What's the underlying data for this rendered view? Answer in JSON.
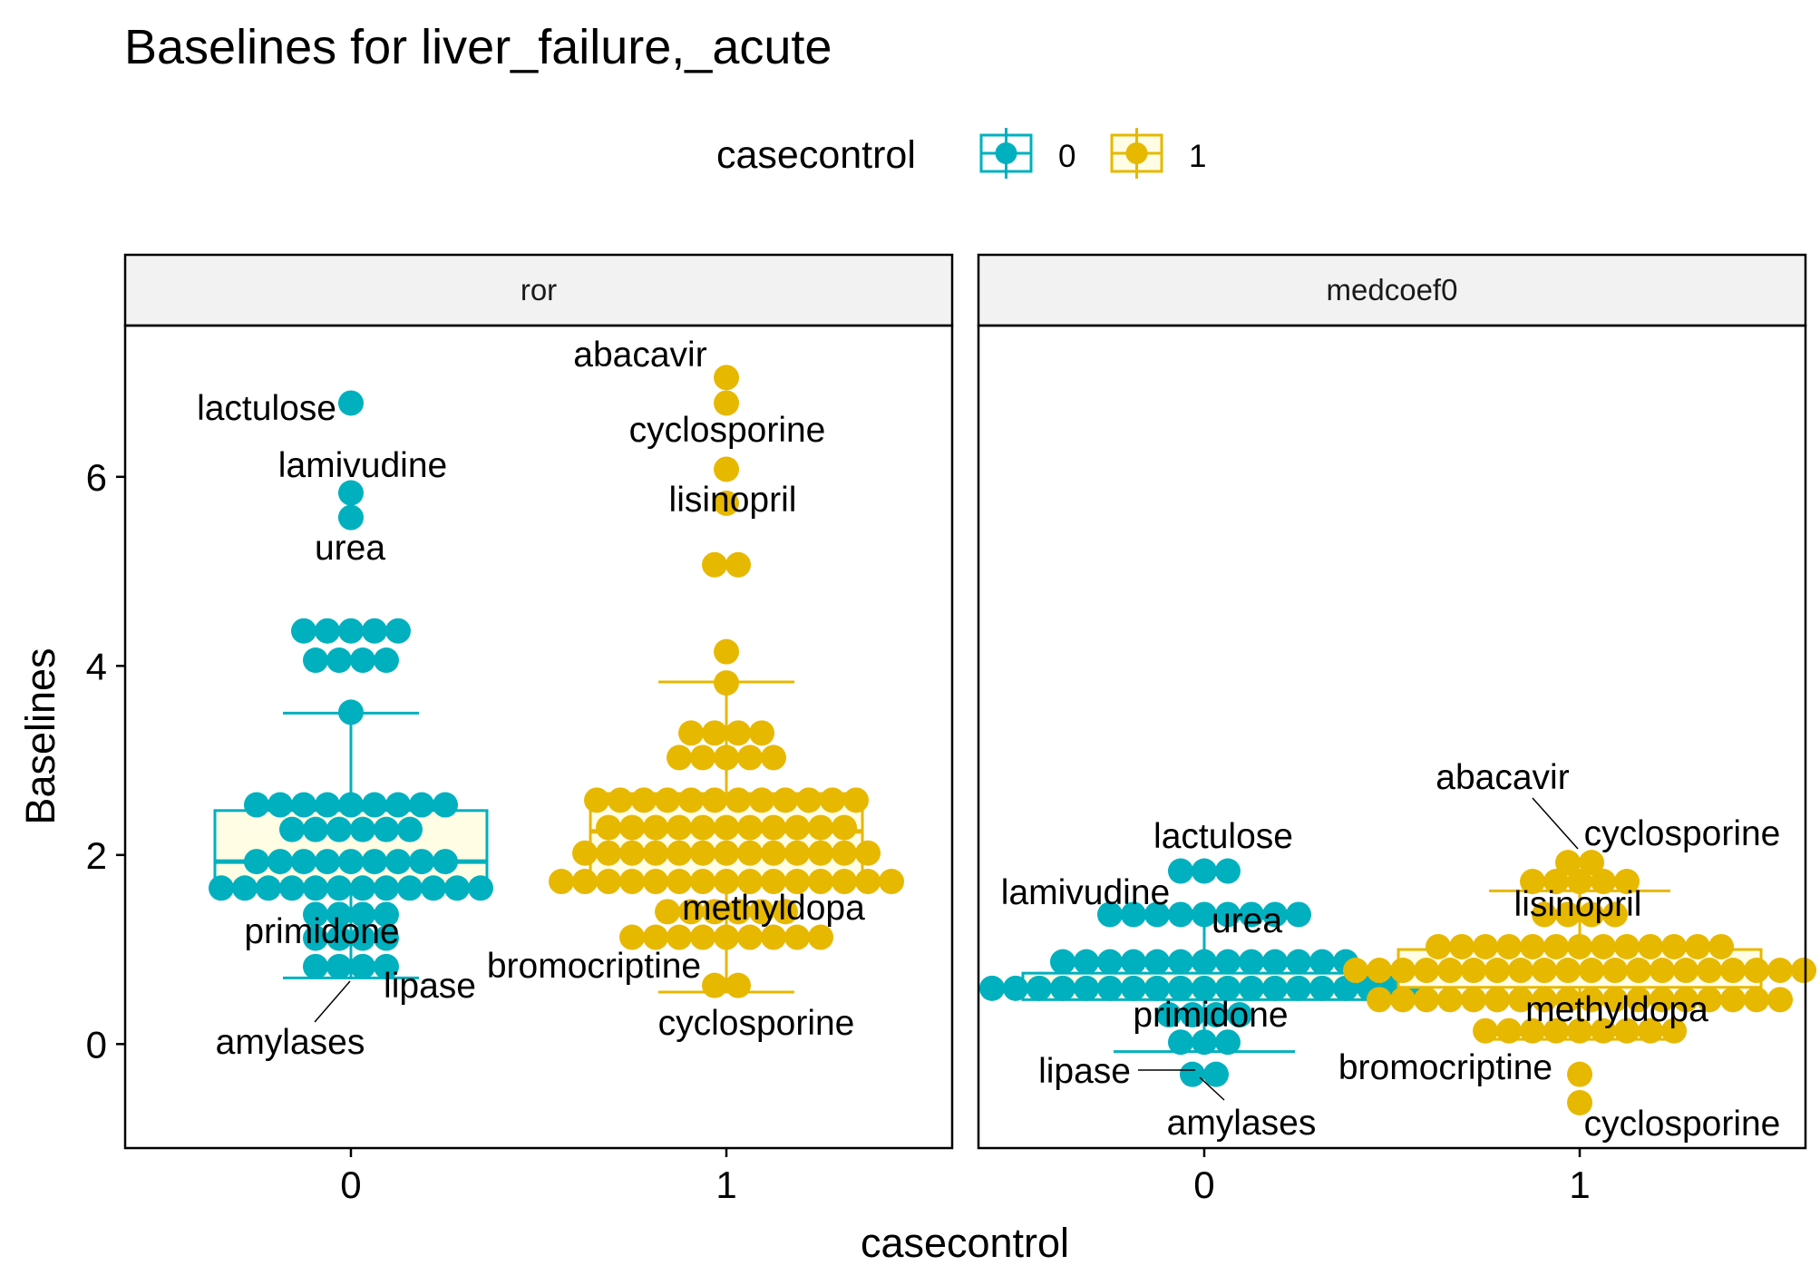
{
  "colors": {
    "group_0": "#00B0BF",
    "group_1": "#E7B800",
    "box_fill": "#FFFDE3",
    "strip_bg": "#F2F2F2",
    "panel_border": "#000000",
    "leader_line": "#000000"
  },
  "chart_data": {
    "type": "box",
    "title": "Baselines for liver_failure,_acute",
    "xlabel": "casecontrol",
    "ylabel": "Baselines",
    "ylim": [
      -1.1,
      7.6
    ],
    "yticks": [
      0,
      2,
      4,
      6
    ],
    "legend": {
      "title": "casecontrol",
      "placement": "top",
      "entries": [
        "0",
        "1"
      ]
    },
    "grid": false,
    "panels": [
      {
        "strip": "ror",
        "categories": [
          "0",
          "1"
        ],
        "boxes": {
          "0": {
            "whisker_low": 0.7,
            "q1": 1.65,
            "median": 1.93,
            "q3": 2.47,
            "whisker_high": 3.5
          },
          "1": {
            "whisker_low": 0.55,
            "q1": 1.72,
            "median": 2.25,
            "q3": 2.65,
            "whisker_high": 3.83
          }
        },
        "points": {
          "0": [
            [
              6.78,
              1
            ],
            [
              5.83,
              1
            ],
            [
              5.57,
              1
            ],
            [
              4.37,
              5
            ],
            [
              4.06,
              4
            ],
            [
              3.51,
              1
            ],
            [
              2.53,
              9
            ],
            [
              2.27,
              6
            ],
            [
              1.93,
              9
            ],
            [
              1.65,
              12
            ],
            [
              1.37,
              4
            ],
            [
              1.12,
              4
            ],
            [
              0.82,
              4
            ]
          ],
          "1": [
            [
              7.05,
              1
            ],
            [
              6.78,
              1
            ],
            [
              6.08,
              1
            ],
            [
              5.72,
              1
            ],
            [
              5.07,
              2
            ],
            [
              4.15,
              1
            ],
            [
              3.82,
              1
            ],
            [
              3.29,
              4
            ],
            [
              3.03,
              5
            ],
            [
              2.58,
              12
            ],
            [
              2.29,
              11
            ],
            [
              2.02,
              13
            ],
            [
              1.72,
              15
            ],
            [
              1.4,
              6
            ],
            [
              1.13,
              9
            ],
            [
              0.62,
              2
            ]
          ]
        },
        "annotations": [
          "lactulose",
          "lamivudine",
          "urea",
          "primidone",
          "lipase",
          "amylases",
          "abacavir",
          "cyclosporine",
          "lisinopril",
          "methyldopa",
          "bromocriptine",
          "cyclosporine"
        ]
      },
      {
        "strip": "medcoef0",
        "categories": [
          "0",
          "1"
        ],
        "boxes": {
          "0": {
            "whisker_low": -0.08,
            "q1": 0.47,
            "median": 0.6,
            "q3": 0.75,
            "whisker_high": 1.4
          },
          "1": {
            "whisker_low": 0.05,
            "q1": 0.6,
            "median": 0.8,
            "q3": 1.0,
            "whisker_high": 1.62
          }
        },
        "points": {
          "0": [
            [
              1.83,
              3
            ],
            [
              1.37,
              9
            ],
            [
              0.87,
              13
            ],
            [
              0.59,
              19
            ],
            [
              0.31,
              4
            ],
            [
              0.02,
              3
            ],
            [
              -0.32,
              2
            ]
          ],
          "1": [
            [
              1.92,
              2
            ],
            [
              1.72,
              5
            ],
            [
              1.37,
              4
            ],
            [
              1.03,
              13
            ],
            [
              0.78,
              20
            ],
            [
              0.47,
              18
            ],
            [
              0.14,
              9
            ],
            [
              -0.32,
              1
            ],
            [
              -0.62,
              1
            ]
          ]
        },
        "annotations": [
          "lactulose",
          "lamivudine",
          "urea",
          "primidone",
          "lipase",
          "amylases",
          "abacavir",
          "cyclosporine",
          "lisinopril",
          "methyldopa",
          "bromocriptine",
          "cyclosporine"
        ]
      }
    ]
  }
}
